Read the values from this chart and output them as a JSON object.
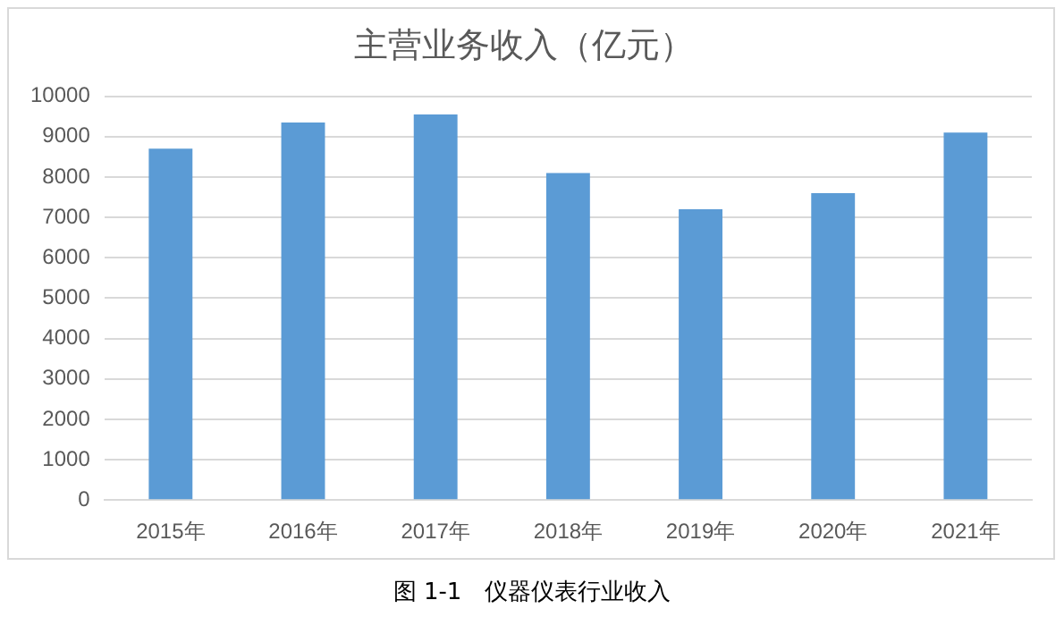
{
  "chart_data": {
    "type": "bar",
    "title": "主营业务收入（亿元）",
    "categories": [
      "2015年",
      "2016年",
      "2017年",
      "2018年",
      "2019年",
      "2020年",
      "2021年"
    ],
    "values": [
      8700,
      9350,
      9550,
      8100,
      7200,
      7600,
      9100
    ],
    "color": "#5b9bd5",
    "ylim": [
      0,
      10000
    ],
    "yticks": [
      0,
      1000,
      2000,
      3000,
      4000,
      5000,
      6000,
      7000,
      8000,
      9000,
      10000
    ],
    "grid": "y",
    "legend": false,
    "annotations": [
      "图 1-1　仪器仪表行业收入"
    ]
  }
}
